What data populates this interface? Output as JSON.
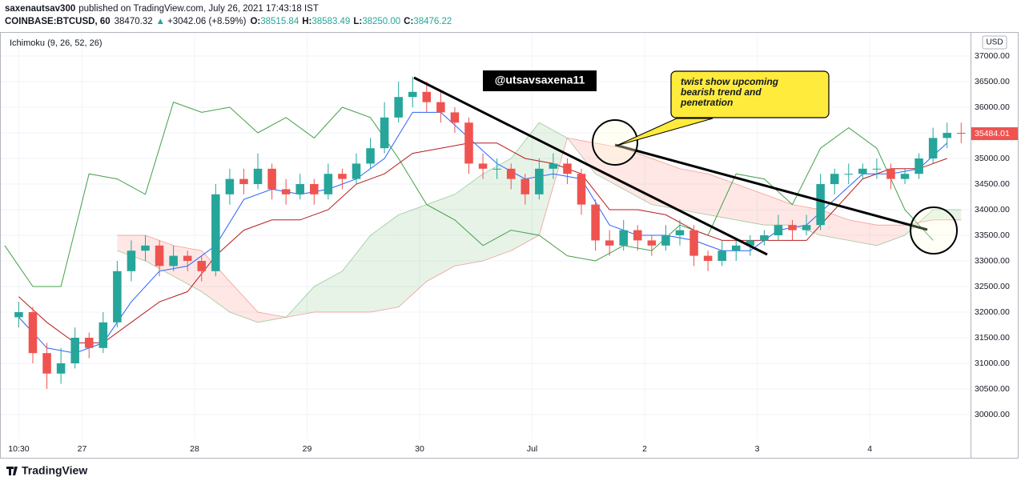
{
  "header": {
    "author": "saxenautsav300",
    "published": "published on TradingView.com, July 26, 2021 17:43:18 IST",
    "symbol": "COINBASE:BTCUSD, 60",
    "last": "38470.32",
    "change_arrow": "▲",
    "change": "+3042.06 (+8.59%)",
    "ohlc": [
      {
        "label": "O:",
        "value": "38515.84"
      },
      {
        "label": "H:",
        "value": "38583.49"
      },
      {
        "label": "L:",
        "value": "38250.00"
      },
      {
        "label": "C:",
        "value": "38476.22"
      }
    ]
  },
  "chart_data": {
    "type": "candlestick",
    "indicator": "Ichimoku (9, 26, 52, 26)",
    "currency": "USD",
    "xlim": [
      -4,
      203
    ],
    "ylim": [
      29156,
      37469
    ],
    "xticks": [
      {
        "value": 0,
        "label": "10:30"
      },
      {
        "value": 13.5,
        "label": "27"
      },
      {
        "value": 37.5,
        "label": "28"
      },
      {
        "value": 61.5,
        "label": "29"
      },
      {
        "value": 85.5,
        "label": "30"
      },
      {
        "value": 109.5,
        "label": "Jul"
      },
      {
        "value": 133.5,
        "label": "2"
      },
      {
        "value": 157.5,
        "label": "3"
      },
      {
        "value": 181.5,
        "label": "4"
      }
    ],
    "yticks": [
      {
        "value": 30000,
        "label": "30000.00"
      },
      {
        "value": 30500,
        "label": "30500.00"
      },
      {
        "value": 31000,
        "label": "31000.00"
      },
      {
        "value": 31500,
        "label": "31500.00"
      },
      {
        "value": 32000,
        "label": "32000.00"
      },
      {
        "value": 32500,
        "label": "32500.00"
      },
      {
        "value": 33000,
        "label": "33000.00"
      },
      {
        "value": 33500,
        "label": "33500.00"
      },
      {
        "value": 34000,
        "label": "34000.00"
      },
      {
        "value": 34500,
        "label": "34500.00"
      },
      {
        "value": 35000,
        "label": "35000.00"
      },
      {
        "value": 35500,
        "label": "35500.00"
      },
      {
        "value": 36000,
        "label": "36000.00"
      },
      {
        "value": 36500,
        "label": "36500.00"
      },
      {
        "value": 37000,
        "label": "37000.00"
      }
    ],
    "grid": true,
    "candles": {
      "up_color": "#26a69a",
      "down_color": "#ef5350",
      "x": [
        0,
        3,
        6,
        9,
        12,
        15,
        18,
        21,
        24,
        27,
        30,
        33,
        36,
        39,
        42,
        45,
        48,
        51,
        54,
        57,
        60,
        63,
        66,
        69,
        72,
        75,
        78,
        81,
        84,
        87,
        90,
        93,
        96,
        99,
        102,
        105,
        108,
        111,
        114,
        117,
        120,
        123,
        126,
        129,
        132,
        135,
        138,
        141,
        144,
        147,
        150,
        153,
        156,
        159,
        162,
        165,
        168,
        171,
        174,
        177,
        180,
        183,
        186,
        189,
        192,
        195,
        198,
        201
      ],
      "open": [
        31900,
        32000,
        31200,
        30800,
        31000,
        31500,
        31300,
        31800,
        32800,
        33200,
        33300,
        32900,
        33100,
        33000,
        32800,
        34300,
        34600,
        34500,
        34800,
        34400,
        34300,
        34500,
        34300,
        34700,
        34600,
        34900,
        35200,
        35800,
        36200,
        36300,
        36100,
        35900,
        35700,
        34900,
        34800,
        34800,
        34600,
        34300,
        34800,
        34900,
        34700,
        34100,
        33400,
        33300,
        33600,
        33400,
        33300,
        33500,
        33600,
        33100,
        33000,
        33200,
        33300,
        33400,
        33500,
        33700,
        33600,
        33700,
        34500,
        34700,
        34700,
        34800,
        34800,
        34600,
        34700,
        35000,
        35400,
        35500
      ],
      "high": [
        32200,
        32100,
        31400,
        31300,
        31700,
        31600,
        32000,
        33000,
        33400,
        33500,
        33400,
        33300,
        33200,
        33100,
        34500,
        34800,
        34800,
        35100,
        34900,
        34600,
        34700,
        34600,
        34900,
        34800,
        35100,
        35400,
        36100,
        36500,
        36600,
        36500,
        36300,
        36000,
        35800,
        35100,
        35000,
        34900,
        34700,
        35000,
        35100,
        35000,
        34800,
        34200,
        33600,
        33800,
        33700,
        33500,
        33700,
        33800,
        33700,
        33200,
        33400,
        33400,
        33500,
        33600,
        33900,
        33800,
        33900,
        34700,
        34800,
        34900,
        34900,
        35000,
        34900,
        34800,
        35100,
        35600,
        35700,
        35700
      ],
      "low": [
        31700,
        31000,
        30500,
        30600,
        30900,
        31100,
        31200,
        31700,
        32600,
        33000,
        32700,
        32800,
        32800,
        32600,
        32700,
        34100,
        34300,
        34400,
        34200,
        34100,
        34200,
        34100,
        34200,
        34400,
        34500,
        34800,
        35100,
        35700,
        36000,
        35900,
        35700,
        35500,
        34700,
        34600,
        34600,
        34400,
        34100,
        34200,
        34600,
        34500,
        33900,
        33200,
        33100,
        33200,
        33200,
        33100,
        33200,
        33300,
        32900,
        32800,
        32900,
        33000,
        33100,
        33300,
        33400,
        33400,
        33500,
        33600,
        34300,
        34500,
        34600,
        34600,
        34400,
        34500,
        34600,
        34900,
        35200,
        35300
      ],
      "close": [
        32000,
        31200,
        30800,
        31000,
        31500,
        31300,
        31800,
        32800,
        33200,
        33300,
        32900,
        33100,
        33000,
        32800,
        34300,
        34600,
        34500,
        34800,
        34400,
        34300,
        34500,
        34300,
        34700,
        34600,
        34900,
        35200,
        35800,
        36200,
        36300,
        36100,
        35900,
        35700,
        34900,
        34800,
        34800,
        34600,
        34300,
        34800,
        34900,
        34700,
        34100,
        33400,
        33300,
        33600,
        33400,
        33300,
        33500,
        33600,
        33100,
        33000,
        33200,
        33300,
        33400,
        33500,
        33700,
        33600,
        33700,
        34500,
        34700,
        34700,
        34800,
        34800,
        34600,
        34700,
        35000,
        35400,
        35500,
        35484.01
      ]
    },
    "conversion": {
      "color": "#2962ff",
      "x": [
        0,
        6,
        12,
        18,
        24,
        30,
        36,
        42,
        48,
        54,
        60,
        66,
        72,
        78,
        84,
        90,
        96,
        102,
        108,
        114,
        120,
        126,
        132,
        138,
        144,
        150,
        156,
        162,
        168,
        174,
        180,
        186,
        192,
        198
      ],
      "values": [
        31900,
        31300,
        31200,
        31400,
        32200,
        32800,
        32900,
        33300,
        34200,
        34400,
        34300,
        34400,
        34600,
        35000,
        35900,
        35900,
        35400,
        34900,
        34600,
        34700,
        34600,
        33700,
        33500,
        33500,
        33400,
        33200,
        33200,
        33600,
        33700,
        34200,
        34700,
        34700,
        34800,
        35300
      ]
    },
    "base": {
      "color": "#b71c1c",
      "x": [
        0,
        6,
        12,
        18,
        24,
        30,
        36,
        42,
        48,
        54,
        60,
        66,
        72,
        78,
        84,
        90,
        96,
        102,
        108,
        114,
        120,
        126,
        132,
        138,
        144,
        150,
        156,
        162,
        168,
        174,
        180,
        186,
        192,
        198
      ],
      "values": [
        32300,
        31800,
        31400,
        31400,
        31800,
        32200,
        32400,
        33100,
        33600,
        33800,
        33800,
        34000,
        34500,
        34700,
        35100,
        35200,
        35300,
        35300,
        35000,
        34900,
        34700,
        34000,
        34000,
        33900,
        33600,
        33400,
        33400,
        33400,
        33400,
        34000,
        34600,
        34800,
        34800,
        35000
      ]
    },
    "lagging": {
      "color": "#43a047",
      "x": [
        -3,
        3,
        9,
        15,
        21,
        27,
        33,
        39,
        45,
        51,
        57,
        63,
        69,
        75,
        81,
        87,
        93,
        99,
        105,
        111,
        117,
        123,
        129,
        135,
        141,
        147,
        153,
        159,
        165,
        171,
        177,
        183,
        189,
        195
      ],
      "values": [
        33300,
        32500,
        32500,
        34700,
        34600,
        34300,
        36100,
        35900,
        36000,
        35500,
        35800,
        35400,
        36000,
        35800,
        35000,
        34100,
        33800,
        33300,
        33600,
        33500,
        33100,
        33000,
        33300,
        33200,
        33700,
        33500,
        34700,
        34600,
        34100,
        35200,
        35600,
        35200,
        34000,
        33400
      ]
    },
    "cloud": {
      "up_color": "#43a047",
      "down_color": "#f44336",
      "x": [
        21,
        27,
        33,
        39,
        45,
        51,
        57,
        63,
        69,
        75,
        81,
        87,
        93,
        99,
        105,
        111,
        117,
        123,
        129,
        135,
        141,
        147,
        153,
        159,
        165,
        171,
        177,
        183,
        189,
        195,
        201
      ],
      "span_a": [
        33200,
        33000,
        32700,
        32400,
        32000,
        31800,
        31900,
        32500,
        32800,
        33500,
        33900,
        34100,
        34300,
        34700,
        35000,
        35700,
        35400,
        34700,
        34400,
        34100,
        34000,
        33900,
        33800,
        33700,
        33700,
        33500,
        33400,
        33300,
        33500,
        34000,
        34000
      ],
      "span_b": [
        33500,
        33500,
        33300,
        33200,
        32600,
        32000,
        31900,
        32000,
        32000,
        32000,
        32100,
        32600,
        32900,
        33000,
        33200,
        33500,
        35400,
        35300,
        35200,
        35000,
        34800,
        34700,
        34500,
        34300,
        34100,
        34000,
        33800,
        33700,
        33700,
        33800,
        33800
      ]
    }
  },
  "annotations": {
    "handle": "@utsavsaxena11",
    "note": [
      "twist show upcoming",
      "bearish trend and",
      "penetration"
    ]
  },
  "footer": {
    "logo": "TradingView"
  }
}
